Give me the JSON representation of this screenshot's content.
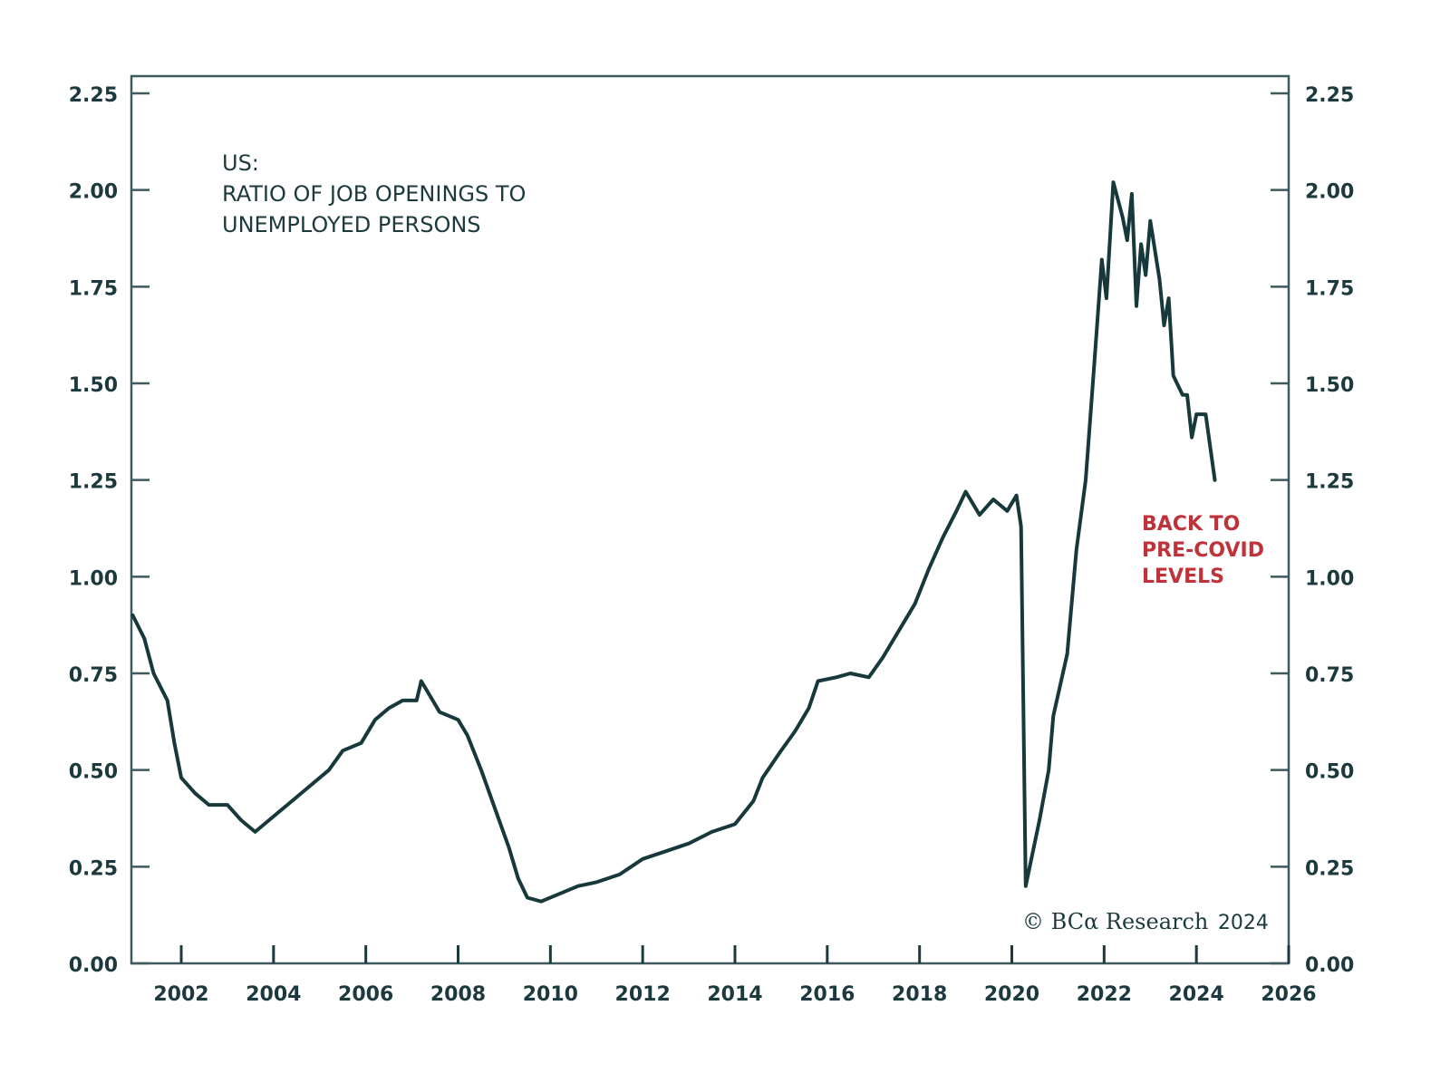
{
  "chart_data": {
    "type": "line",
    "title": "US:",
    "subtitle_lines": [
      "RATIO OF JOB OPENINGS TO",
      "UNEMPLOYED PERSONS"
    ],
    "xlabel": "",
    "ylabel": "",
    "xlim": [
      2000.9,
      2026
    ],
    "ylim": [
      0,
      2.25
    ],
    "x_ticks": [
      2002,
      2004,
      2006,
      2008,
      2010,
      2012,
      2014,
      2016,
      2018,
      2020,
      2022,
      2024,
      2026
    ],
    "x_tick_labels": [
      "2002",
      "2004",
      "2006",
      "2008",
      "2010",
      "2012",
      "2014",
      "2016",
      "2018",
      "2020",
      "2022",
      "2024",
      "2026"
    ],
    "y_ticks": [
      0,
      0.25,
      0.5,
      0.75,
      1.0,
      1.25,
      1.5,
      1.75,
      2.0,
      2.25
    ],
    "y_tick_labels": [
      "0.00",
      "0.25",
      "0.50",
      "0.75",
      "1.00",
      "1.25",
      "1.50",
      "1.75",
      "2.00",
      "2.25"
    ],
    "y_axis_right_mirror": true,
    "grid": false,
    "legend": "none",
    "series": [
      {
        "name": "Ratio of job openings to unemployed persons",
        "color": "#17393c",
        "x": [
          2000.95,
          2001.2,
          2001.4,
          2001.7,
          2001.85,
          2002.0,
          2002.3,
          2002.6,
          2003.0,
          2003.3,
          2003.6,
          2003.9,
          2004.3,
          2004.7,
          2005.2,
          2005.5,
          2005.9,
          2006.2,
          2006.5,
          2006.8,
          2007.1,
          2007.2,
          2007.4,
          2007.6,
          2008.0,
          2008.2,
          2008.5,
          2008.8,
          2009.1,
          2009.3,
          2009.5,
          2009.8,
          2010.2,
          2010.6,
          2011.0,
          2011.5,
          2012.0,
          2012.5,
          2013.0,
          2013.5,
          2014.0,
          2014.4,
          2014.6,
          2015.0,
          2015.3,
          2015.6,
          2015.8,
          2016.2,
          2016.5,
          2016.9,
          2017.2,
          2017.5,
          2017.9,
          2018.2,
          2018.5,
          2018.8,
          2019.0,
          2019.3,
          2019.6,
          2019.9,
          2020.1,
          2020.2,
          2020.3,
          2020.6,
          2020.8,
          2020.9,
          2021.2,
          2021.4,
          2021.6,
          2021.8,
          2021.95,
          2022.05,
          2022.2,
          2022.4,
          2022.5,
          2022.6,
          2022.7,
          2022.8,
          2022.9,
          2023.0,
          2023.2,
          2023.3,
          2023.4,
          2023.5,
          2023.7,
          2023.8,
          2023.9,
          2024.0,
          2024.2,
          2024.4
        ],
        "values": [
          0.9,
          0.84,
          0.75,
          0.68,
          0.57,
          0.48,
          0.44,
          0.41,
          0.41,
          0.37,
          0.34,
          0.37,
          0.41,
          0.45,
          0.5,
          0.55,
          0.57,
          0.63,
          0.66,
          0.68,
          0.68,
          0.73,
          0.69,
          0.65,
          0.63,
          0.59,
          0.5,
          0.4,
          0.3,
          0.22,
          0.17,
          0.16,
          0.18,
          0.2,
          0.21,
          0.23,
          0.27,
          0.29,
          0.31,
          0.34,
          0.36,
          0.42,
          0.48,
          0.55,
          0.6,
          0.66,
          0.73,
          0.74,
          0.75,
          0.74,
          0.79,
          0.85,
          0.93,
          1.02,
          1.1,
          1.17,
          1.22,
          1.16,
          1.2,
          1.17,
          1.21,
          1.13,
          0.2,
          0.37,
          0.5,
          0.64,
          0.8,
          1.07,
          1.25,
          1.57,
          1.82,
          1.72,
          2.02,
          1.93,
          1.87,
          1.99,
          1.7,
          1.86,
          1.78,
          1.92,
          1.77,
          1.65,
          1.72,
          1.52,
          1.47,
          1.47,
          1.36,
          1.42,
          1.42,
          1.25
        ]
      }
    ],
    "annotations": [
      {
        "text_lines": [
          "BACK TO",
          "PRE-COVID",
          "LEVELS"
        ],
        "color": "#c0323a",
        "anchor_x": 2024.0,
        "anchor_y": 1.15
      }
    ],
    "credit": {
      "brand": "© BCα Research",
      "year": "2024"
    }
  },
  "colors": {
    "axis": "#3d5a5e",
    "line": "#17393c",
    "text": "#1c3a3e",
    "annotation": "#c0323a"
  }
}
